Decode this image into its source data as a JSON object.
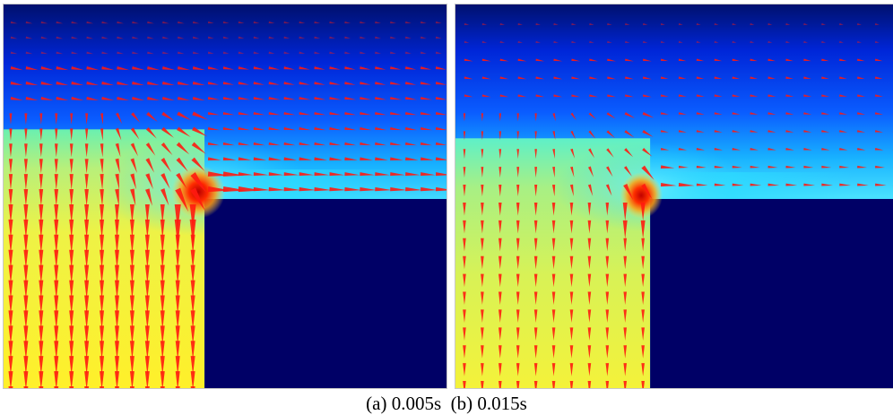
{
  "figure": {
    "caption": {
      "part_a": "(a) 0.005s",
      "part_b": "(b) 0.015s"
    },
    "colormap": [
      "#00006e",
      "#0000e0",
      "#0a4cff",
      "#17d8ff",
      "#9bf08c",
      "#e8f550",
      "#fff030",
      "#ff3000",
      "#b80000"
    ],
    "arrow_color": "#ff1a10",
    "obstacle_color": "#000066",
    "panels": [
      {
        "id": "a",
        "time": "0.005s"
      },
      {
        "id": "b",
        "time": "0.015s"
      }
    ]
  }
}
